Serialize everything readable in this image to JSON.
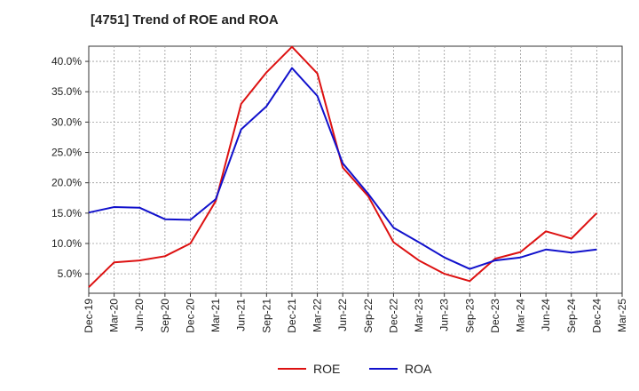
{
  "chart_data": {
    "type": "line",
    "title": "[4751]  Trend of ROE and ROA",
    "x": [
      "Dec-19",
      "Mar-20",
      "Jun-20",
      "Sep-20",
      "Dec-20",
      "Mar-21",
      "Jun-21",
      "Sep-21",
      "Dec-21",
      "Mar-22",
      "Jun-22",
      "Sep-22",
      "Dec-22",
      "Mar-23",
      "Jun-23",
      "Sep-23",
      "Dec-23",
      "Mar-24",
      "Jun-24",
      "Sep-24",
      "Dec-24",
      "Mar-25"
    ],
    "y_ticks": [
      "5.0%",
      "10.0%",
      "15.0%",
      "20.0%",
      "25.0%",
      "30.0%",
      "35.0%",
      "40.0%"
    ],
    "ylim": [
      1.8,
      42.5
    ],
    "grid": true,
    "legend_position": "bottom",
    "series": [
      {
        "name": "ROE",
        "color": "#dd1111",
        "values": [
          2.8,
          6.9,
          7.2,
          7.9,
          10.0,
          17.0,
          33.0,
          38.2,
          42.4,
          38.0,
          22.5,
          17.8,
          10.2,
          7.2,
          5.0,
          3.8,
          7.5,
          8.6,
          12.0,
          10.8,
          15.0,
          null
        ]
      },
      {
        "name": "ROA",
        "color": "#1111cc",
        "values": [
          15.1,
          16.0,
          15.9,
          14.0,
          13.9,
          17.3,
          28.8,
          32.6,
          38.9,
          34.3,
          23.2,
          18.2,
          12.6,
          10.2,
          7.7,
          5.8,
          7.2,
          7.7,
          9.0,
          8.5,
          9.0,
          null
        ]
      }
    ]
  }
}
